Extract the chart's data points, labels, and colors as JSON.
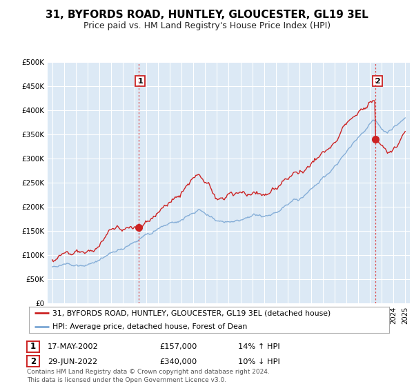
{
  "title": "31, BYFORDS ROAD, HUNTLEY, GLOUCESTER, GL19 3EL",
  "subtitle": "Price paid vs. HM Land Registry's House Price Index (HPI)",
  "ylim": [
    0,
    500000
  ],
  "yticks": [
    0,
    50000,
    100000,
    150000,
    200000,
    250000,
    300000,
    350000,
    400000,
    450000,
    500000
  ],
  "ytick_labels": [
    "£0",
    "£50K",
    "£100K",
    "£150K",
    "£200K",
    "£250K",
    "£300K",
    "£350K",
    "£400K",
    "£450K",
    "£500K"
  ],
  "hpi_color": "#7ba7d4",
  "price_color": "#cc2222",
  "sale1_date": 2002.37,
  "sale1_price": 157000,
  "sale2_date": 2022.49,
  "sale2_price": 340000,
  "legend_line1": "31, BYFORDS ROAD, HUNTLEY, GLOUCESTER, GL19 3EL (detached house)",
  "legend_line2": "HPI: Average price, detached house, Forest of Dean",
  "table_row1": [
    "1",
    "17-MAY-2002",
    "£157,000",
    "14% ↑ HPI"
  ],
  "table_row2": [
    "2",
    "29-JUN-2022",
    "£340,000",
    "10% ↓ HPI"
  ],
  "footnote": "Contains HM Land Registry data © Crown copyright and database right 2024.\nThis data is licensed under the Open Government Licence v3.0.",
  "background_color": "#ffffff",
  "chart_bg_color": "#dce9f5",
  "grid_color": "#ffffff",
  "title_fontsize": 11,
  "subtitle_fontsize": 9
}
